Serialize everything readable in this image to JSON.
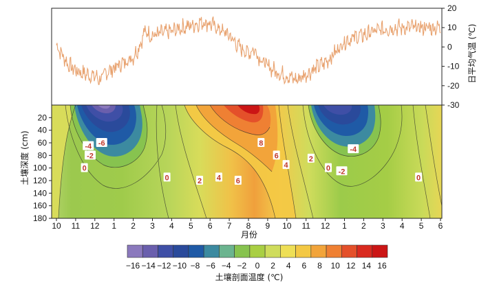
{
  "chart_data": [
    {
      "type": "line",
      "name": "daily-mean-air-temperature",
      "ylabel": "日平均气温 (℃)",
      "ylim": [
        -30,
        20
      ],
      "yticks": [
        20,
        10,
        0,
        -10,
        -20,
        -30
      ],
      "line_color": "#e8a26f",
      "series": [
        {
          "name": "日平均气温",
          "x_month_index": [
            0,
            0.3,
            0.6,
            1,
            1.5,
            2,
            2.3,
            2.6,
            3,
            3.5,
            4,
            4.3,
            4.6,
            5,
            5.5,
            6,
            6.5,
            7,
            7.3,
            7.6,
            8,
            8.5,
            9,
            9.5,
            10,
            10.3,
            10.6,
            11,
            11.5,
            12,
            12.5,
            13,
            13.5,
            14,
            14.5,
            15,
            15.5,
            16,
            16.5,
            17,
            17.5,
            18,
            18.5,
            19,
            19.5,
            20
          ],
          "values": [
            1,
            -4,
            -9,
            -12,
            -14,
            -15,
            -17,
            -13,
            -11,
            -8,
            -5,
            0,
            8,
            6,
            7,
            8,
            10,
            11,
            12,
            13,
            12,
            9,
            6,
            0,
            -3,
            -1,
            -6,
            -10,
            -13,
            -15,
            -17,
            -14,
            -11,
            -8,
            -3,
            3,
            5,
            6,
            8,
            9,
            10,
            10,
            10,
            10,
            10,
            10
          ]
        }
      ]
    },
    {
      "type": "heatmap",
      "name": "soil-profile-temperature",
      "subtype": "filled-contour",
      "ylabel": "土壤深度 (cm)",
      "xlabel": "月份",
      "x_tick_labels": [
        "10",
        "11",
        "12",
        "1",
        "2",
        "3",
        "4",
        "5",
        "6",
        "7",
        "8",
        "9",
        "10",
        "11",
        "12",
        "1",
        "2",
        "3",
        "4",
        "5",
        "6"
      ],
      "yticks": [
        20,
        40,
        60,
        80,
        100,
        120,
        140,
        160,
        180
      ],
      "ylim": [
        180,
        0
      ],
      "contour_levels": [
        -16,
        -14,
        -12,
        -10,
        -8,
        -6,
        -4,
        -2,
        0,
        2,
        4,
        6,
        8,
        10,
        12,
        14,
        16
      ],
      "contour_labels": [
        {
          "text": "-6",
          "month_index": 2.5,
          "depth": 60
        },
        {
          "text": "-4",
          "month_index": 1.8,
          "depth": 65
        },
        {
          "text": "-2",
          "month_index": 1.9,
          "depth": 80
        },
        {
          "text": "0",
          "month_index": 1.6,
          "depth": 100
        },
        {
          "text": "0",
          "month_index": 5.9,
          "depth": 115
        },
        {
          "text": "2",
          "month_index": 7.6,
          "depth": 120
        },
        {
          "text": "4",
          "month_index": 8.6,
          "depth": 115
        },
        {
          "text": "6",
          "month_index": 9.6,
          "depth": 120
        },
        {
          "text": "8",
          "month_index": 10.8,
          "depth": 60
        },
        {
          "text": "6",
          "month_index": 11.6,
          "depth": 80
        },
        {
          "text": "4",
          "month_index": 12.1,
          "depth": 95
        },
        {
          "text": "2",
          "month_index": 13.4,
          "depth": 85
        },
        {
          "text": "0",
          "month_index": 14.3,
          "depth": 100
        },
        {
          "text": "-2",
          "month_index": 15.0,
          "depth": 105
        },
        {
          "text": "-4",
          "month_index": 15.6,
          "depth": 70
        },
        {
          "text": "0",
          "month_index": 19.0,
          "depth": 115
        }
      ]
    }
  ],
  "colorbar": {
    "label": "土壤剖面温度 (℃)",
    "tick_labels": [
      "−16",
      "−14",
      "−12",
      "−10",
      "−8",
      "−6",
      "−4",
      "−2",
      "0",
      "2",
      "4",
      "6",
      "8",
      "10",
      "12",
      "14",
      "16"
    ],
    "colors": [
      "#8b79bd",
      "#6a5fad",
      "#3f4fa6",
      "#2a4a9b",
      "#1f5aa6",
      "#3c8aa0",
      "#6bb48f",
      "#87c34f",
      "#a9cf43",
      "#cfdc5c",
      "#eedf56",
      "#f3c844",
      "#f2a43a",
      "#ef8033",
      "#e4502a",
      "#d92a1f",
      "#cb1515"
    ]
  }
}
